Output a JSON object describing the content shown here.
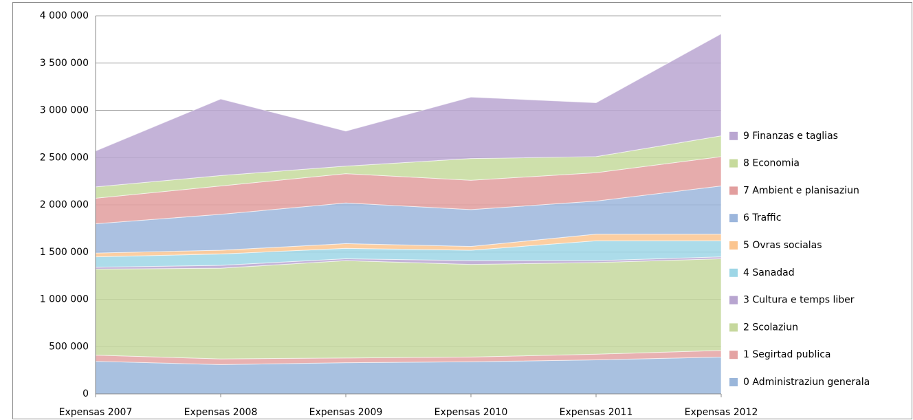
{
  "chart_data": {
    "type": "stacked_area",
    "categories": [
      "Expensas  2007",
      "Expensas  2008",
      "Expensas  2009",
      "Expensas  2010",
      "Expensas  2011",
      "Expensas  2012"
    ],
    "series": [
      {
        "name": "0 Administraziun generala",
        "color": "#9ab6da",
        "values": [
          345000,
          310000,
          330000,
          340000,
          360000,
          390000
        ]
      },
      {
        "name": "1 Segirtad publica",
        "color": "#e4a3a3",
        "values": [
          65000,
          60000,
          50000,
          50000,
          60000,
          70000
        ]
      },
      {
        "name": "2 Scolaziun",
        "color": "#c6d89d",
        "values": [
          910000,
          960000,
          1030000,
          980000,
          970000,
          970000
        ]
      },
      {
        "name": "3 Cultura e temps liber",
        "color": "#b8a5d0",
        "values": [
          20000,
          30000,
          20000,
          40000,
          20000,
          20000
        ]
      },
      {
        "name": "4 Sanadad",
        "color": "#9dd6e6",
        "values": [
          110000,
          120000,
          110000,
          110000,
          210000,
          170000
        ]
      },
      {
        "name": "5 Ovras socialas",
        "color": "#fbc590",
        "values": [
          40000,
          40000,
          50000,
          40000,
          70000,
          70000
        ]
      },
      {
        "name": "6 Traffic",
        "color": "#9cb6dc",
        "values": [
          310000,
          380000,
          430000,
          390000,
          350000,
          510000
        ]
      },
      {
        "name": "7 Ambient e planisaziun",
        "color": "#e29e9e",
        "values": [
          270000,
          300000,
          310000,
          310000,
          300000,
          310000
        ]
      },
      {
        "name": "8 Economia",
        "color": "#c6da9c",
        "values": [
          120000,
          110000,
          80000,
          230000,
          170000,
          220000
        ]
      },
      {
        "name": "9 Finanzas e taglias",
        "color": "#baa6d1",
        "values": [
          380000,
          810000,
          370000,
          650000,
          570000,
          1080000
        ]
      }
    ],
    "ylim": [
      0,
      4000000
    ],
    "yticks": [
      0,
      {
        "value": 500000,
        "label": "500 000"
      },
      {
        "value": 1000000,
        "label": "1 000 000"
      },
      {
        "value": 1500000,
        "label": "1 500 000"
      },
      {
        "value": 2000000,
        "label": "2 000 000"
      },
      {
        "value": 2500000,
        "label": "2 500 000"
      },
      {
        "value": 3000000,
        "label": "3 000 000"
      },
      {
        "value": 3500000,
        "label": "3 500 000"
      },
      {
        "value": 4000000,
        "label": "4 000 000"
      }
    ],
    "grid": true,
    "legend": "right"
  }
}
